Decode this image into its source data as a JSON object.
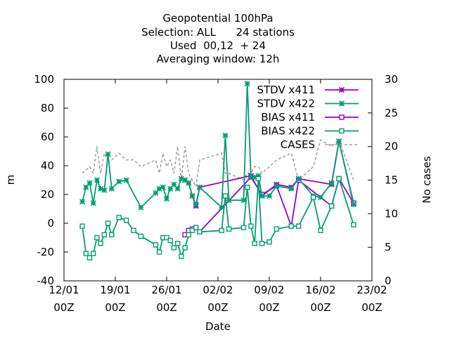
{
  "chart_data": {
    "type": "line",
    "title_lines": [
      "Geopotential 100hPa",
      "Selection: ALL      24 stations",
      "Used  00,12  + 24",
      "Averaging window: 12h"
    ],
    "xlabel": "Date",
    "ylabel": "m",
    "y2label": "No cases",
    "xlim": [
      "2022-01-12 00:00",
      "2022-02-23 00:00"
    ],
    "ylim": [
      -40,
      100
    ],
    "y2lim": [
      0,
      30
    ],
    "x_ticks": [
      {
        "line1": "12/01",
        "line2": "00Z"
      },
      {
        "line1": "19/01",
        "line2": "00Z"
      },
      {
        "line1": "26/01",
        "line2": "00Z"
      },
      {
        "line1": "02/02",
        "line2": "00Z"
      },
      {
        "line1": "09/02",
        "line2": "00Z"
      },
      {
        "line1": "16/02",
        "line2": "00Z"
      },
      {
        "line1": "23/02",
        "line2": "00Z"
      }
    ],
    "y_ticks": [
      "-40",
      "-20",
      "0",
      "20",
      "40",
      "60",
      "80",
      "100"
    ],
    "y2_ticks": [
      "0",
      "5",
      "10",
      "15",
      "20",
      "25",
      "30"
    ],
    "legend_position": "top-right",
    "grid": false,
    "colors": {
      "stdv_x411": "#9400d3",
      "stdv_x422": "#009e73",
      "bias_x411": "#9400d3",
      "bias_x422": "#009e73",
      "cases": "#a0a0a0"
    },
    "series": [
      {
        "name": "STDV x411",
        "key": "stdv_x411",
        "axis": "y",
        "marker": "star",
        "points": [
          [
            "2022-01-28 12:00",
            30
          ],
          [
            "2022-01-29 00:00",
            28
          ],
          [
            "2022-01-29 12:00",
            19
          ],
          [
            "2022-01-30 00:00",
            12
          ],
          [
            "2022-01-30 12:00",
            25
          ],
          [
            "2022-02-06 12:00",
            33
          ],
          [
            "2022-02-08 00:00",
            19
          ],
          [
            "2022-02-10 00:00",
            27
          ],
          [
            "2022-02-12 00:00",
            25
          ],
          [
            "2022-02-13 00:00",
            31
          ],
          [
            "2022-02-17 12:00",
            27
          ],
          [
            "2022-02-18 12:00",
            57
          ],
          [
            "2022-02-20 12:00",
            14
          ]
        ]
      },
      {
        "name": "STDV x422",
        "key": "stdv_x422",
        "axis": "y",
        "marker": "star",
        "points": [
          [
            "2022-01-14 12:00",
            15
          ],
          [
            "2022-01-15 00:00",
            25
          ],
          [
            "2022-01-15 12:00",
            28
          ],
          [
            "2022-01-16 00:00",
            14
          ],
          [
            "2022-01-16 12:00",
            30
          ],
          [
            "2022-01-17 00:00",
            24
          ],
          [
            "2022-01-17 12:00",
            23
          ],
          [
            "2022-01-18 00:00",
            48
          ],
          [
            "2022-01-18 12:00",
            24
          ],
          [
            "2022-01-19 12:00",
            29
          ],
          [
            "2022-01-20 12:00",
            30
          ],
          [
            "2022-01-22 12:00",
            11
          ],
          [
            "2022-01-24 12:00",
            21
          ],
          [
            "2022-01-25 00:00",
            24
          ],
          [
            "2022-01-25 12:00",
            25
          ],
          [
            "2022-01-26 00:00",
            17
          ],
          [
            "2022-01-26 12:00",
            24
          ],
          [
            "2022-01-27 00:00",
            27
          ],
          [
            "2022-01-27 12:00",
            24
          ],
          [
            "2022-01-28 00:00",
            31
          ],
          [
            "2022-01-28 12:00",
            30
          ],
          [
            "2022-01-29 00:00",
            28
          ],
          [
            "2022-01-29 12:00",
            19
          ],
          [
            "2022-01-30 00:00",
            13
          ],
          [
            "2022-01-30 12:00",
            25
          ],
          [
            "2022-02-02 12:00",
            11
          ],
          [
            "2022-02-03 00:00",
            61
          ],
          [
            "2022-02-03 12:00",
            16
          ],
          [
            "2022-02-05 12:00",
            16
          ],
          [
            "2022-02-06 00:00",
            97
          ],
          [
            "2022-02-06 12:00",
            32
          ],
          [
            "2022-02-07 00:00",
            32
          ],
          [
            "2022-02-07 12:00",
            33
          ],
          [
            "2022-02-08 00:00",
            19
          ],
          [
            "2022-02-09 00:00",
            19
          ],
          [
            "2022-02-10 00:00",
            26
          ],
          [
            "2022-02-12 00:00",
            24
          ],
          [
            "2022-02-13 00:00",
            31
          ],
          [
            "2022-02-15 00:00",
            19
          ],
          [
            "2022-02-16 00:00",
            18
          ],
          [
            "2022-02-17 12:00",
            28
          ],
          [
            "2022-02-18 12:00",
            57
          ],
          [
            "2022-02-20 12:00",
            13
          ]
        ]
      },
      {
        "name": "BIAS x411",
        "key": "bias_x411",
        "axis": "y",
        "marker": "square",
        "points": [
          [
            "2022-01-28 12:00",
            -8
          ],
          [
            "2022-01-29 00:00",
            -5
          ],
          [
            "2022-01-29 12:00",
            -4
          ],
          [
            "2022-01-30 00:00",
            -3
          ],
          [
            "2022-01-30 12:00",
            -6
          ],
          [
            "2022-02-06 12:00",
            32
          ],
          [
            "2022-02-08 00:00",
            20
          ],
          [
            "2022-02-10 00:00",
            26
          ],
          [
            "2022-02-12 00:00",
            -2
          ],
          [
            "2022-02-13 00:00",
            30
          ],
          [
            "2022-02-17 12:00",
            12
          ],
          [
            "2022-02-18 12:00",
            31
          ],
          [
            "2022-02-20 12:00",
            14
          ]
        ]
      },
      {
        "name": "BIAS x422",
        "key": "bias_x422",
        "axis": "y",
        "marker": "square",
        "points": [
          [
            "2022-01-14 12:00",
            -2
          ],
          [
            "2022-01-15 00:00",
            -21
          ],
          [
            "2022-01-15 12:00",
            -24
          ],
          [
            "2022-01-16 00:00",
            -21
          ],
          [
            "2022-01-16 12:00",
            -10
          ],
          [
            "2022-01-17 00:00",
            -14
          ],
          [
            "2022-01-17 12:00",
            -8
          ],
          [
            "2022-01-18 00:00",
            0
          ],
          [
            "2022-01-18 12:00",
            -8
          ],
          [
            "2022-01-19 12:00",
            4
          ],
          [
            "2022-01-20 12:00",
            2
          ],
          [
            "2022-01-21 12:00",
            -5
          ],
          [
            "2022-01-22 12:00",
            -9
          ],
          [
            "2022-01-24 12:00",
            -15
          ],
          [
            "2022-01-25 00:00",
            -20
          ],
          [
            "2022-01-25 12:00",
            -10
          ],
          [
            "2022-01-26 00:00",
            -10
          ],
          [
            "2022-01-26 12:00",
            -12
          ],
          [
            "2022-01-27 00:00",
            -17
          ],
          [
            "2022-01-27 12:00",
            -14
          ],
          [
            "2022-01-28 00:00",
            -23
          ],
          [
            "2022-01-28 12:00",
            -17
          ],
          [
            "2022-01-29 00:00",
            -8
          ],
          [
            "2022-01-29 12:00",
            -5
          ],
          [
            "2022-01-30 00:00",
            -3
          ],
          [
            "2022-01-30 12:00",
            -6
          ],
          [
            "2022-02-02 12:00",
            -5
          ],
          [
            "2022-02-03 00:00",
            19
          ],
          [
            "2022-02-03 12:00",
            -4
          ],
          [
            "2022-02-05 12:00",
            -3
          ],
          [
            "2022-02-06 00:00",
            25
          ],
          [
            "2022-02-06 12:00",
            -2
          ],
          [
            "2022-02-07 00:00",
            -14
          ],
          [
            "2022-02-07 12:00",
            31
          ],
          [
            "2022-02-08 00:00",
            -14
          ],
          [
            "2022-02-09 00:00",
            -13
          ],
          [
            "2022-02-10 00:00",
            -4
          ],
          [
            "2022-02-12 00:00",
            -2
          ],
          [
            "2022-02-13 00:00",
            -2
          ],
          [
            "2022-02-15 00:00",
            18
          ],
          [
            "2022-02-16 00:00",
            -5
          ],
          [
            "2022-02-17 12:00",
            12
          ],
          [
            "2022-02-18 12:00",
            31
          ],
          [
            "2022-02-20 12:00",
            -1
          ]
        ]
      },
      {
        "name": "CASES",
        "key": "cases",
        "axis": "y2",
        "marker": "none",
        "dashed": true,
        "points": [
          [
            "2022-01-14 12:00",
            16
          ],
          [
            "2022-01-15 12:00",
            17
          ],
          [
            "2022-01-16 00:00",
            16
          ],
          [
            "2022-01-16 12:00",
            20
          ],
          [
            "2022-01-17 00:00",
            16
          ],
          [
            "2022-01-17 12:00",
            19
          ],
          [
            "2022-01-18 00:00",
            18
          ],
          [
            "2022-01-18 12:00",
            18
          ],
          [
            "2022-01-19 12:00",
            19
          ],
          [
            "2022-01-20 12:00",
            18
          ],
          [
            "2022-01-21 12:00",
            18
          ],
          [
            "2022-01-22 12:00",
            17
          ],
          [
            "2022-01-24 12:00",
            18
          ],
          [
            "2022-01-25 00:00",
            16
          ],
          [
            "2022-01-25 12:00",
            19
          ],
          [
            "2022-01-26 00:00",
            17
          ],
          [
            "2022-01-26 12:00",
            18
          ],
          [
            "2022-01-27 00:00",
            16
          ],
          [
            "2022-01-27 12:00",
            20
          ],
          [
            "2022-01-28 00:00",
            15
          ],
          [
            "2022-01-28 12:00",
            20
          ],
          [
            "2022-01-29 00:00",
            16
          ],
          [
            "2022-01-29 12:00",
            15
          ],
          [
            "2022-01-30 00:00",
            14
          ],
          [
            "2022-01-30 12:00",
            18
          ],
          [
            "2022-02-02 12:00",
            19
          ],
          [
            "2022-02-03 00:00",
            16
          ],
          [
            "2022-02-03 12:00",
            16
          ],
          [
            "2022-02-05 12:00",
            15
          ],
          [
            "2022-02-06 00:00",
            16
          ],
          [
            "2022-02-06 12:00",
            16
          ],
          [
            "2022-02-07 00:00",
            17
          ],
          [
            "2022-02-07 12:00",
            17
          ],
          [
            "2022-02-08 00:00",
            16
          ],
          [
            "2022-02-09 00:00",
            17
          ],
          [
            "2022-02-10 00:00",
            18
          ],
          [
            "2022-02-12 00:00",
            19
          ],
          [
            "2022-02-13 00:00",
            15
          ],
          [
            "2022-02-15 00:00",
            17
          ],
          [
            "2022-02-16 00:00",
            21
          ],
          [
            "2022-02-17 12:00",
            20
          ],
          [
            "2022-02-18 12:00",
            21
          ],
          [
            "2022-02-20 12:00",
            15
          ]
        ]
      }
    ]
  }
}
